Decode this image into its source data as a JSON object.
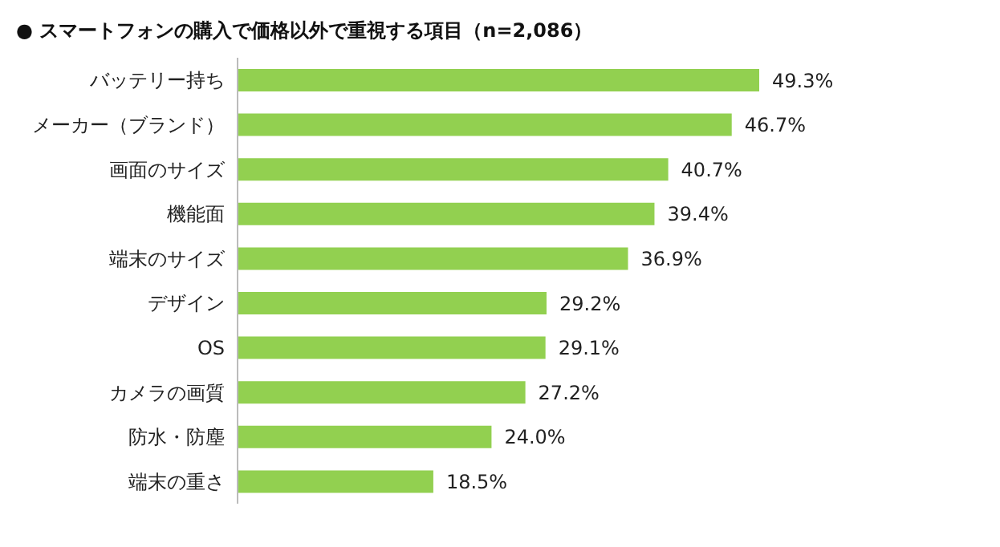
{
  "chart_data": {
    "type": "bar",
    "orientation": "horizontal",
    "title": "● スマートフォンの購入で価格以外で重視する項目（n=2,086）",
    "categories": [
      "バッテリー持ち",
      "メーカー（ブランド）",
      "画面のサイズ",
      "機能面",
      "端末のサイズ",
      "デザイン",
      "OS",
      "カメラの画質",
      "防水・防塵",
      "端末の重さ"
    ],
    "values": [
      49.3,
      46.7,
      40.7,
      39.4,
      36.9,
      29.2,
      29.1,
      27.2,
      24.0,
      18.5
    ],
    "value_labels": [
      "49.3%",
      "46.7%",
      "40.7%",
      "39.4%",
      "36.9%",
      "29.2%",
      "29.1%",
      "27.2%",
      "24.0%",
      "18.5%"
    ],
    "color": "#92d050",
    "grid": false,
    "legend": false
  }
}
